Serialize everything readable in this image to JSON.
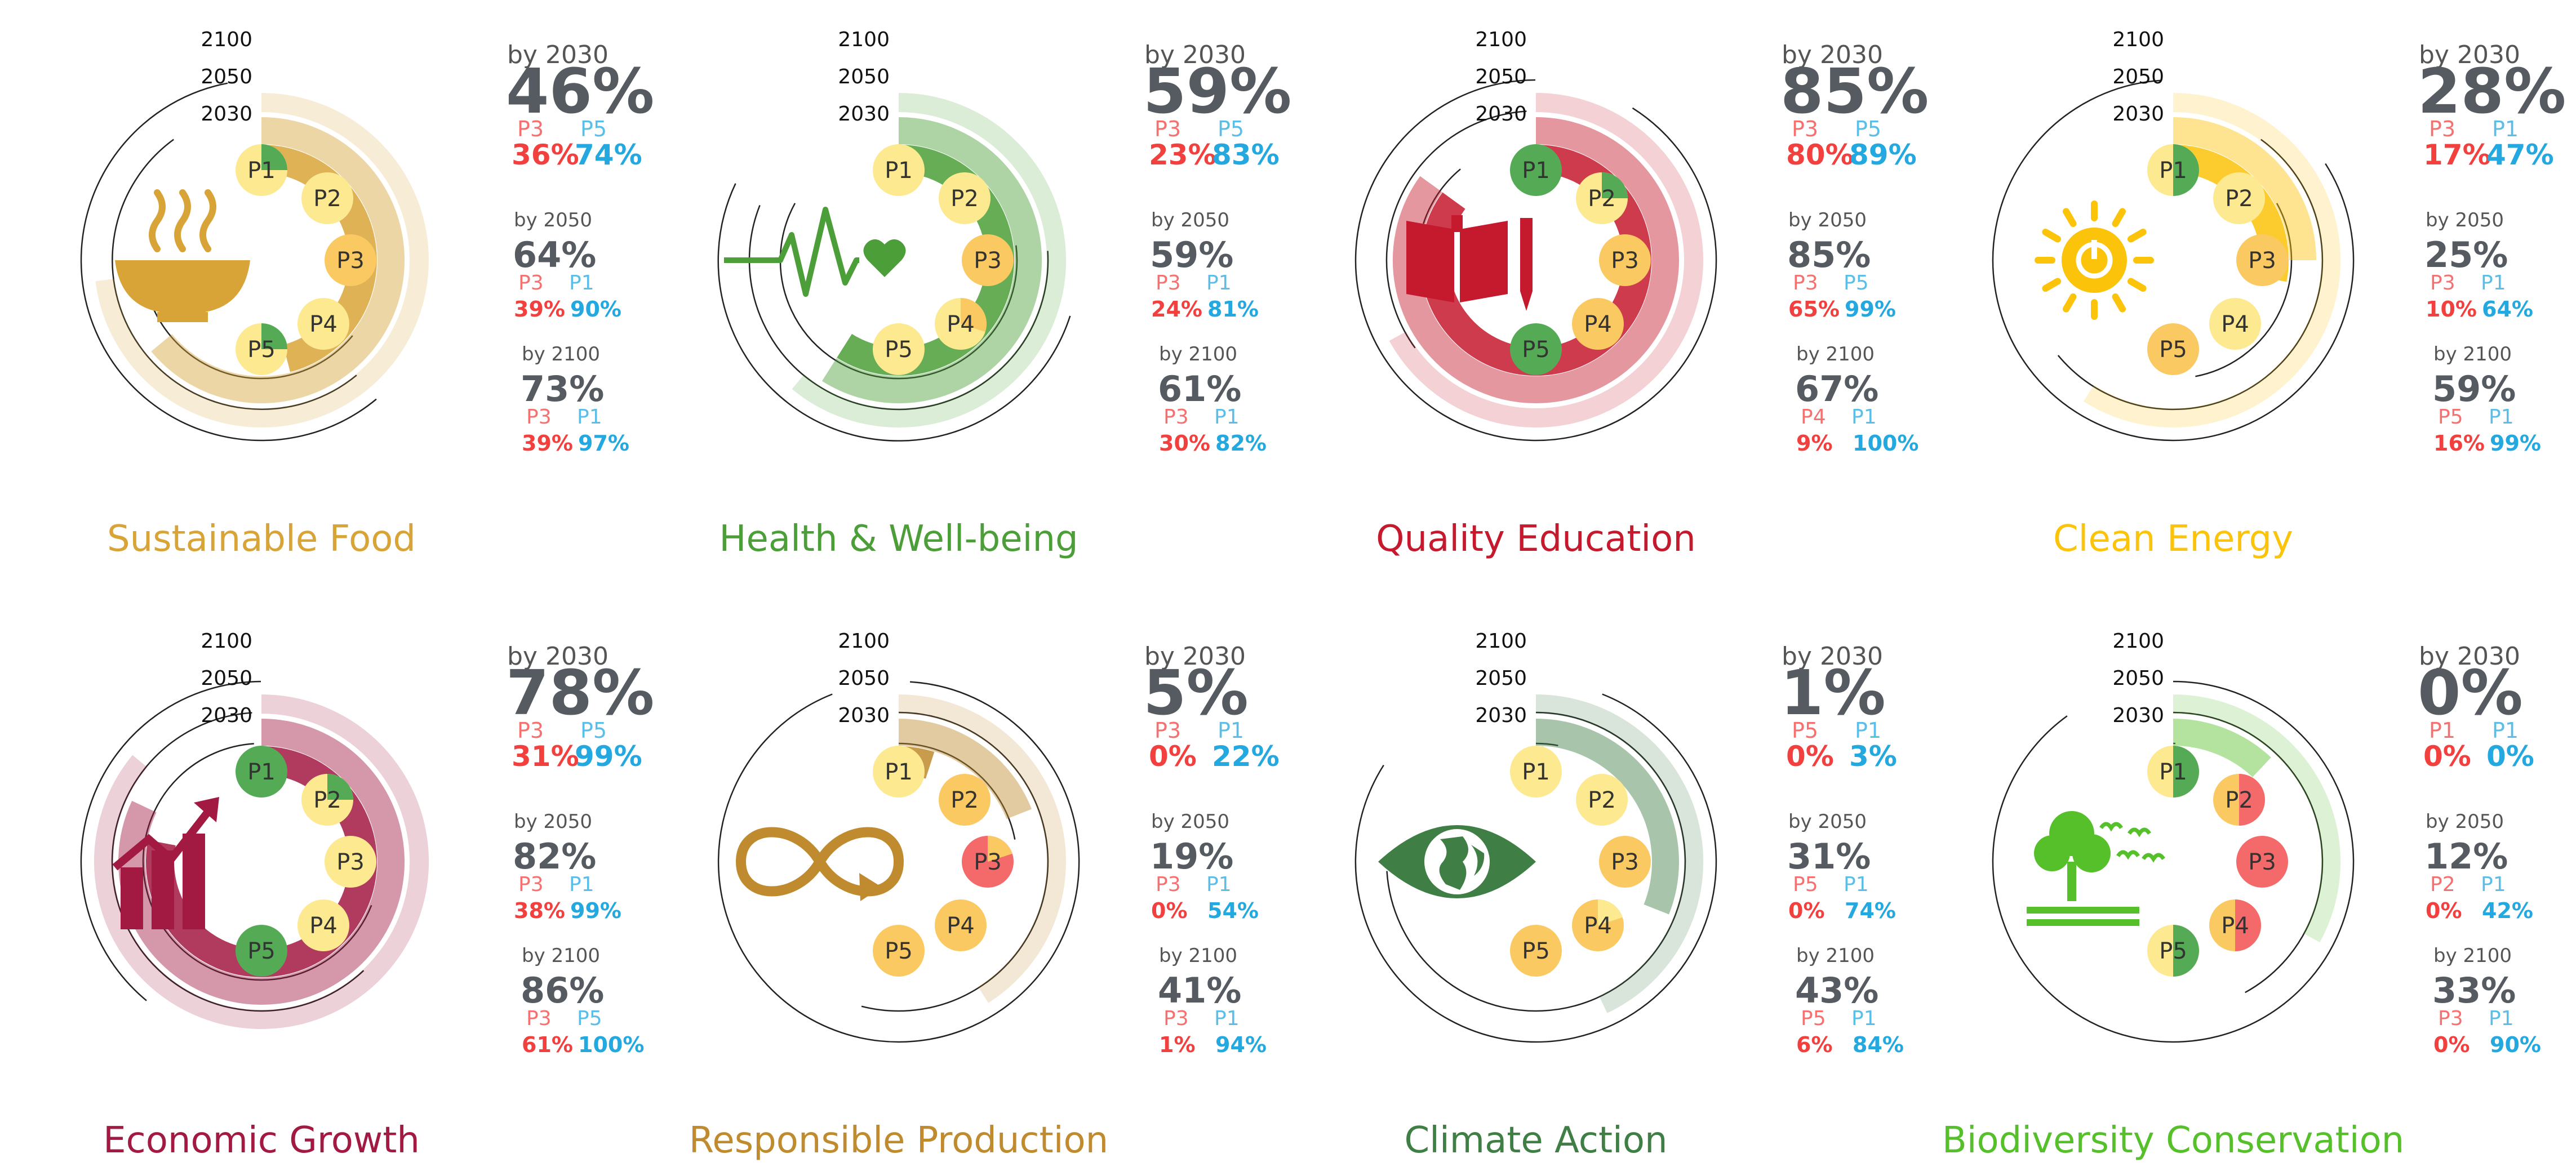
{
  "chart_data": [
    {
      "type": "radial-bar",
      "title": "Sustainable Food",
      "color": "#d8a437",
      "icon": "food-bowl-icon",
      "year_labels": [
        "2100",
        "2050",
        "2030"
      ],
      "rings": [
        {
          "year": "2030",
          "value": 46,
          "range_low": 36,
          "range_high": 74
        },
        {
          "year": "2050",
          "value": 64,
          "range_low": 39,
          "range_high": 90
        },
        {
          "year": "2100",
          "value": 73,
          "range_low": 39,
          "range_high": 97
        }
      ],
      "stats": [
        {
          "label": "by 2030",
          "value": "46%",
          "min_label": "P3",
          "min_value": "36%",
          "max_label": "P5",
          "max_value": "74%"
        },
        {
          "label": "by 2050",
          "value": "64%",
          "min_label": "P3",
          "min_value": "39%",
          "max_label": "P1",
          "max_value": "90%"
        },
        {
          "label": "by 2100",
          "value": "73%",
          "min_label": "P3",
          "min_value": "39%",
          "max_label": "P1",
          "max_value": "97%"
        }
      ],
      "pathways": [
        {
          "name": "P1",
          "fill": "#fde98f",
          "wedge": 0.25,
          "wedge_color": "#55ab55"
        },
        {
          "name": "P2",
          "fill": "#fde98f",
          "wedge": 0,
          "wedge_color": ""
        },
        {
          "name": "P3",
          "fill": "#fbc962",
          "wedge": 0,
          "wedge_color": ""
        },
        {
          "name": "P4",
          "fill": "#fde98f",
          "wedge": 0,
          "wedge_color": ""
        },
        {
          "name": "P5",
          "fill": "#fde98f",
          "wedge": 0.25,
          "wedge_color": "#55ab55"
        }
      ]
    },
    {
      "type": "radial-bar",
      "title": "Health & Well-being",
      "color": "#4c9f38",
      "icon": "heartbeat-icon",
      "year_labels": [
        "2100",
        "2050",
        "2030"
      ],
      "rings": [
        {
          "year": "2030",
          "value": 59,
          "range_low": 23,
          "range_high": 83
        },
        {
          "year": "2050",
          "value": 59,
          "range_low": 24,
          "range_high": 81
        },
        {
          "year": "2100",
          "value": 61,
          "range_low": 30,
          "range_high": 82
        }
      ],
      "stats": [
        {
          "label": "by 2030",
          "value": "59%",
          "min_label": "P3",
          "min_value": "23%",
          "max_label": "P5",
          "max_value": "83%"
        },
        {
          "label": "by 2050",
          "value": "59%",
          "min_label": "P3",
          "min_value": "24%",
          "max_label": "P1",
          "max_value": "81%"
        },
        {
          "label": "by 2100",
          "value": "61%",
          "min_label": "P3",
          "min_value": "30%",
          "max_label": "P1",
          "max_value": "82%"
        }
      ],
      "pathways": [
        {
          "name": "P1",
          "fill": "#fde98f",
          "wedge": 0,
          "wedge_color": ""
        },
        {
          "name": "P2",
          "fill": "#fde98f",
          "wedge": 0,
          "wedge_color": ""
        },
        {
          "name": "P3",
          "fill": "#fbc962",
          "wedge": 0,
          "wedge_color": ""
        },
        {
          "name": "P4",
          "fill": "#fde98f",
          "wedge": 0.3,
          "wedge_color": "#fbc962"
        },
        {
          "name": "P5",
          "fill": "#fde98f",
          "wedge": 0,
          "wedge_color": ""
        }
      ]
    },
    {
      "type": "radial-bar",
      "title": "Quality Education",
      "color": "#c5192d",
      "icon": "book-pencil-icon",
      "year_labels": [
        "2100",
        "2050",
        "2030"
      ],
      "rings": [
        {
          "year": "2030",
          "value": 85,
          "range_low": 80,
          "range_high": 89
        },
        {
          "year": "2050",
          "value": 85,
          "range_low": 65,
          "range_high": 99
        },
        {
          "year": "2100",
          "value": 67,
          "range_low": 9,
          "range_high": 100
        }
      ],
      "stats": [
        {
          "label": "by 2030",
          "value": "85%",
          "min_label": "P3",
          "min_value": "80%",
          "max_label": "P5",
          "max_value": "89%"
        },
        {
          "label": "by 2050",
          "value": "85%",
          "min_label": "P3",
          "min_value": "65%",
          "max_label": "P5",
          "max_value": "99%"
        },
        {
          "label": "by 2100",
          "value": "67%",
          "min_label": "P4",
          "min_value": "9%",
          "max_label": "P1",
          "max_value": "100%"
        }
      ],
      "pathways": [
        {
          "name": "P1",
          "fill": "#55ab55",
          "wedge": 0,
          "wedge_color": ""
        },
        {
          "name": "P2",
          "fill": "#fde98f",
          "wedge": 0.25,
          "wedge_color": "#55ab55"
        },
        {
          "name": "P3",
          "fill": "#fbc962",
          "wedge": 0,
          "wedge_color": ""
        },
        {
          "name": "P4",
          "fill": "#fbc962",
          "wedge": 0,
          "wedge_color": ""
        },
        {
          "name": "P5",
          "fill": "#55ab55",
          "wedge": 0,
          "wedge_color": ""
        }
      ]
    },
    {
      "type": "radial-bar",
      "title": "Clean Energy",
      "color": "#fcc30b",
      "icon": "sun-power-icon",
      "year_labels": [
        "2100",
        "2050",
        "2030"
      ],
      "rings": [
        {
          "year": "2030",
          "value": 28,
          "range_low": 17,
          "range_high": 47
        },
        {
          "year": "2050",
          "value": 25,
          "range_low": 10,
          "range_high": 64
        },
        {
          "year": "2100",
          "value": 59,
          "range_low": 16,
          "range_high": 99
        }
      ],
      "stats": [
        {
          "label": "by 2030",
          "value": "28%",
          "min_label": "P3",
          "min_value": "17%",
          "max_label": "P1",
          "max_value": "47%"
        },
        {
          "label": "by 2050",
          "value": "25%",
          "min_label": "P3",
          "min_value": "10%",
          "max_label": "P1",
          "max_value": "64%"
        },
        {
          "label": "by 2100",
          "value": "59%",
          "min_label": "P5",
          "min_value": "16%",
          "max_label": "P1",
          "max_value": "99%"
        }
      ],
      "pathways": [
        {
          "name": "P1",
          "fill": "#fde98f",
          "wedge": 0.5,
          "wedge_color": "#55ab55"
        },
        {
          "name": "P2",
          "fill": "#fde98f",
          "wedge": 0,
          "wedge_color": ""
        },
        {
          "name": "P3",
          "fill": "#fbc962",
          "wedge": 0,
          "wedge_color": ""
        },
        {
          "name": "P4",
          "fill": "#fde98f",
          "wedge": 0,
          "wedge_color": ""
        },
        {
          "name": "P5",
          "fill": "#fbc962",
          "wedge": 0,
          "wedge_color": ""
        }
      ]
    },
    {
      "type": "radial-bar",
      "title": "Economic Growth",
      "color": "#a21942",
      "icon": "growth-chart-icon",
      "year_labels": [
        "2100",
        "2050",
        "2030"
      ],
      "rings": [
        {
          "year": "2030",
          "value": 78,
          "range_low": 31,
          "range_high": 99
        },
        {
          "year": "2050",
          "value": 82,
          "range_low": 38,
          "range_high": 99
        },
        {
          "year": "2100",
          "value": 86,
          "range_low": 61,
          "range_high": 100
        }
      ],
      "stats": [
        {
          "label": "by 2030",
          "value": "78%",
          "min_label": "P3",
          "min_value": "31%",
          "max_label": "P5",
          "max_value": "99%"
        },
        {
          "label": "by 2050",
          "value": "82%",
          "min_label": "P3",
          "min_value": "38%",
          "max_label": "P1",
          "max_value": "99%"
        },
        {
          "label": "by 2100",
          "value": "86%",
          "min_label": "P3",
          "min_value": "61%",
          "max_label": "P5",
          "max_value": "100%"
        }
      ],
      "pathways": [
        {
          "name": "P1",
          "fill": "#55ab55",
          "wedge": 0,
          "wedge_color": ""
        },
        {
          "name": "P2",
          "fill": "#fde98f",
          "wedge": 0.25,
          "wedge_color": "#55ab55"
        },
        {
          "name": "P3",
          "fill": "#fde98f",
          "wedge": 0,
          "wedge_color": ""
        },
        {
          "name": "P4",
          "fill": "#fde98f",
          "wedge": 0,
          "wedge_color": ""
        },
        {
          "name": "P5",
          "fill": "#55ab55",
          "wedge": 0,
          "wedge_color": ""
        }
      ]
    },
    {
      "type": "radial-bar",
      "title": "Responsible Production",
      "color": "#bf8b2e",
      "icon": "infinity-loop-icon",
      "year_labels": [
        "2100",
        "2050",
        "2030"
      ],
      "rings": [
        {
          "year": "2030",
          "value": 5,
          "range_low": 0,
          "range_high": 22
        },
        {
          "year": "2050",
          "value": 19,
          "range_low": 0,
          "range_high": 54
        },
        {
          "year": "2100",
          "value": 41,
          "range_low": 1,
          "range_high": 94
        }
      ],
      "stats": [
        {
          "label": "by 2030",
          "value": "5%",
          "min_label": "P3",
          "min_value": "0%",
          "max_label": "P1",
          "max_value": "22%"
        },
        {
          "label": "by 2050",
          "value": "19%",
          "min_label": "P3",
          "min_value": "0%",
          "max_label": "P1",
          "max_value": "54%"
        },
        {
          "label": "by 2100",
          "value": "41%",
          "min_label": "P3",
          "min_value": "1%",
          "max_label": "P1",
          "max_value": "94%"
        }
      ],
      "pathways": [
        {
          "name": "P1",
          "fill": "#fde98f",
          "wedge": 0,
          "wedge_color": ""
        },
        {
          "name": "P2",
          "fill": "#fbc962",
          "wedge": 0,
          "wedge_color": ""
        },
        {
          "name": "P3",
          "fill": "#f46a6a",
          "wedge": 0.2,
          "wedge_color": "#fbc962"
        },
        {
          "name": "P4",
          "fill": "#fbc962",
          "wedge": 0,
          "wedge_color": ""
        },
        {
          "name": "P5",
          "fill": "#fbc962",
          "wedge": 0,
          "wedge_color": ""
        }
      ]
    },
    {
      "type": "radial-bar",
      "title": "Climate Action",
      "color": "#3f7e44",
      "icon": "earth-eye-icon",
      "year_labels": [
        "2100",
        "2050",
        "2030"
      ],
      "rings": [
        {
          "year": "2030",
          "value": 1,
          "range_low": 0,
          "range_high": 3
        },
        {
          "year": "2050",
          "value": 31,
          "range_low": 0,
          "range_high": 74
        },
        {
          "year": "2100",
          "value": 43,
          "range_low": 6,
          "range_high": 84
        }
      ],
      "stats": [
        {
          "label": "by 2030",
          "value": "1%",
          "min_label": "P5",
          "min_value": "0%",
          "max_label": "P1",
          "max_value": "3%"
        },
        {
          "label": "by 2050",
          "value": "31%",
          "min_label": "P5",
          "min_value": "0%",
          "max_label": "P1",
          "max_value": "74%"
        },
        {
          "label": "by 2100",
          "value": "43%",
          "min_label": "P5",
          "min_value": "6%",
          "max_label": "P1",
          "max_value": "84%"
        }
      ],
      "pathways": [
        {
          "name": "P1",
          "fill": "#fde98f",
          "wedge": 0,
          "wedge_color": ""
        },
        {
          "name": "P2",
          "fill": "#fde98f",
          "wedge": 0,
          "wedge_color": ""
        },
        {
          "name": "P3",
          "fill": "#fbc962",
          "wedge": 0,
          "wedge_color": ""
        },
        {
          "name": "P4",
          "fill": "#fbc962",
          "wedge": 0.2,
          "wedge_color": "#fde98f"
        },
        {
          "name": "P5",
          "fill": "#fbc962",
          "wedge": 0,
          "wedge_color": ""
        }
      ]
    },
    {
      "type": "radial-bar",
      "title": "Biodiversity Conservation",
      "color": "#56c02b",
      "icon": "tree-birds-icon",
      "year_labels": [
        "2100",
        "2050",
        "2030"
      ],
      "rings": [
        {
          "year": "2030",
          "value": 0,
          "range_low": 0,
          "range_high": 0
        },
        {
          "year": "2050",
          "value": 12,
          "range_low": 0,
          "range_high": 42
        },
        {
          "year": "2100",
          "value": 33,
          "range_low": 0,
          "range_high": 90
        }
      ],
      "stats": [
        {
          "label": "by 2030",
          "value": "0%",
          "min_label": "P1",
          "min_value": "0%",
          "max_label": "P1",
          "max_value": "0%"
        },
        {
          "label": "by 2050",
          "value": "12%",
          "min_label": "P2",
          "min_value": "0%",
          "max_label": "P1",
          "max_value": "42%"
        },
        {
          "label": "by 2100",
          "value": "33%",
          "min_label": "P3",
          "min_value": "0%",
          "max_label": "P1",
          "max_value": "90%"
        }
      ],
      "pathways": [
        {
          "name": "P1",
          "fill": "#fde98f",
          "wedge": 0.5,
          "wedge_color": "#55ab55"
        },
        {
          "name": "P2",
          "fill": "#fbc962",
          "wedge": 0.5,
          "wedge_color": "#f46a6a"
        },
        {
          "name": "P3",
          "fill": "#f46a6a",
          "wedge": 0,
          "wedge_color": ""
        },
        {
          "name": "P4",
          "fill": "#fbc962",
          "wedge": 0.5,
          "wedge_color": "#f46a6a"
        },
        {
          "name": "P5",
          "fill": "#fde98f",
          "wedge": 0.5,
          "wedge_color": "#55ab55"
        }
      ]
    }
  ],
  "colors": {
    "min_value": "#f2403f",
    "max_value": "#23a8e0"
  }
}
